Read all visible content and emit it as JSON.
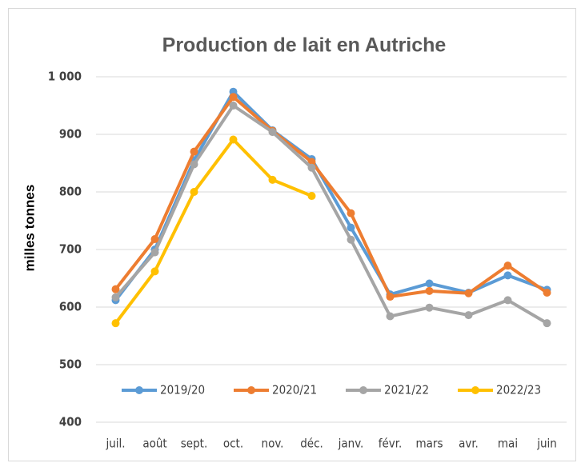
{
  "chart_data": {
    "type": "line",
    "title": "Production de lait en  Autriche",
    "y_label": "milles  tonnes",
    "categories": [
      "juil.",
      "août",
      "sept.",
      "oct.",
      "nov.",
      "déc.",
      "janv.",
      "févr.",
      "mars",
      "avr.",
      "mai",
      "juin"
    ],
    "series": [
      {
        "name": "2019/20",
        "color": "#5b9bd5",
        "values": [
          612,
          700,
          855,
          974,
          907,
          857,
          738,
          622,
          641,
          625,
          655,
          630
        ]
      },
      {
        "name": "2020/21",
        "color": "#ed7d31",
        "values": [
          631,
          718,
          870,
          965,
          906,
          852,
          763,
          618,
          628,
          624,
          672,
          625
        ]
      },
      {
        "name": "2021/22",
        "color": "#a5a5a5",
        "values": [
          617,
          695,
          848,
          950,
          904,
          842,
          717,
          584,
          599,
          586,
          612,
          572
        ]
      },
      {
        "name": "2022/23",
        "color": "#ffc000",
        "values": [
          572,
          662,
          800,
          891,
          821,
          793,
          null,
          null,
          null,
          null,
          null,
          null
        ]
      }
    ],
    "ylim": [
      400,
      1000
    ],
    "yticks": [
      400,
      500,
      600,
      700,
      800,
      900,
      {
        "value": 1000,
        "label": "1 000"
      }
    ],
    "grid": true,
    "legend": "bottom"
  }
}
